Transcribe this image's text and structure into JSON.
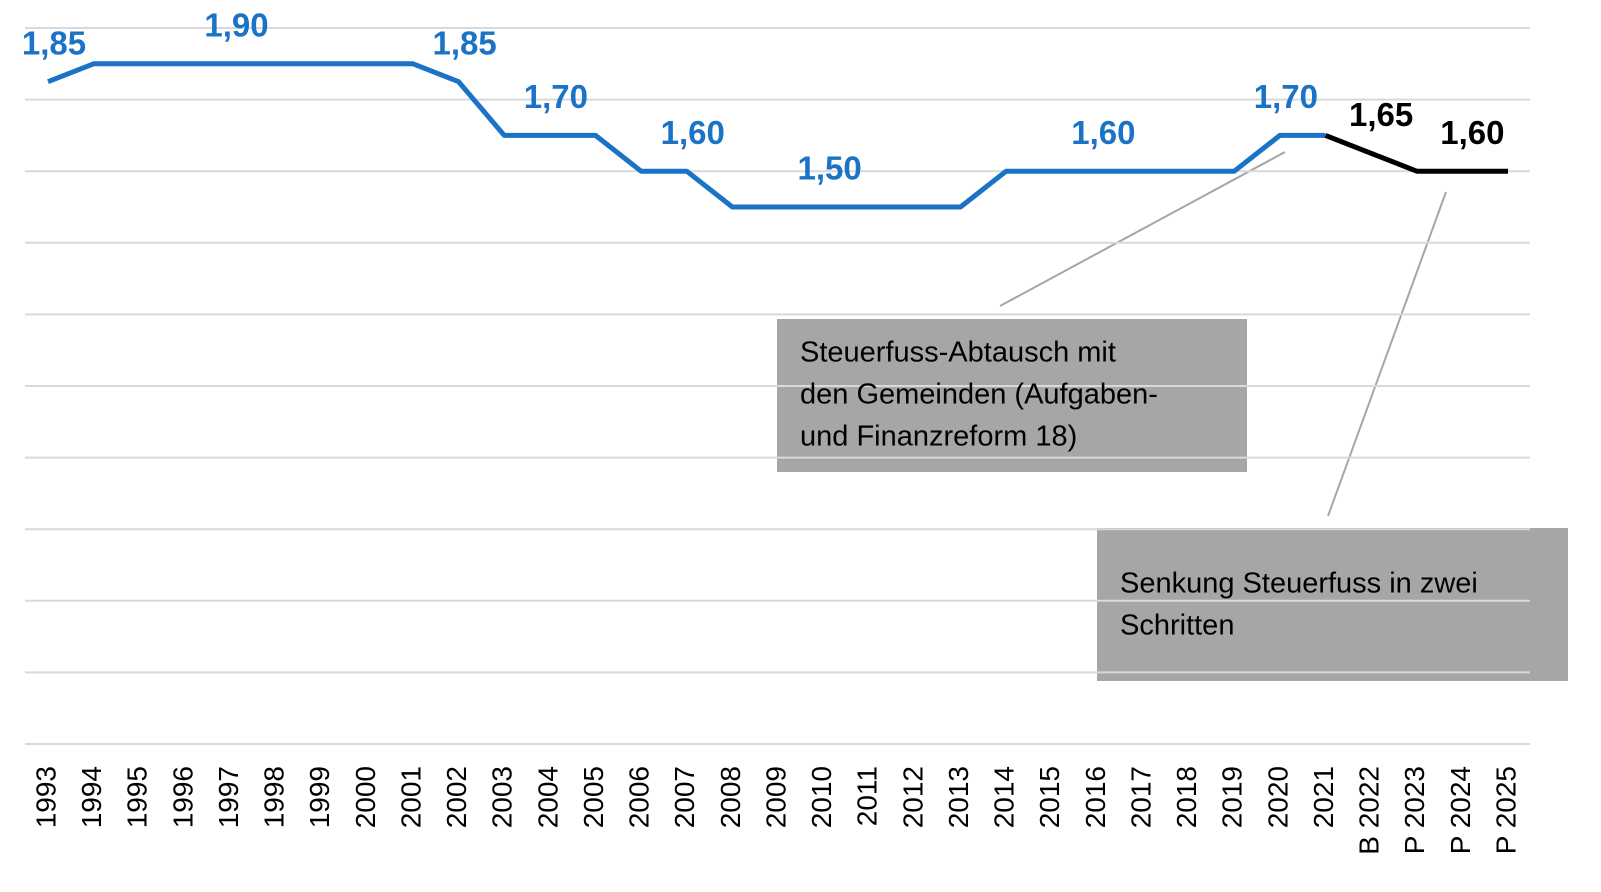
{
  "chart_data": {
    "type": "line",
    "categories": [
      "1993",
      "1994",
      "1995",
      "1996",
      "1997",
      "1998",
      "1999",
      "2000",
      "2001",
      "2002",
      "2003",
      "2004",
      "2005",
      "2006",
      "2007",
      "2008",
      "2009",
      "2010",
      "2011",
      "2012",
      "2013",
      "2014",
      "2015",
      "2016",
      "2017",
      "2018",
      "2019",
      "2020",
      "2021",
      "B 2022",
      "P 2023",
      "P 2024",
      "P 2025"
    ],
    "series": [
      {
        "color": "#1a73c6",
        "values": [
          1.85,
          1.9,
          1.9,
          1.9,
          1.9,
          1.9,
          1.9,
          1.9,
          1.9,
          1.85,
          1.7,
          1.7,
          1.7,
          1.6,
          1.6,
          1.5,
          1.5,
          1.5,
          1.5,
          1.5,
          1.5,
          1.6,
          1.6,
          1.6,
          1.6,
          1.6,
          1.6,
          1.7,
          1.7,
          null,
          null,
          null,
          null
        ],
        "value_labels": [
          "1,85",
          null,
          null,
          null,
          "1,90",
          null,
          null,
          null,
          null,
          "1,85",
          null,
          "1,70",
          null,
          null,
          "1,60",
          null,
          null,
          "1,50",
          null,
          null,
          null,
          null,
          null,
          "1,60",
          null,
          null,
          null,
          "1,70",
          null,
          null,
          null,
          null,
          null
        ]
      },
      {
        "color": "#000000",
        "values": [
          null,
          null,
          null,
          null,
          null,
          null,
          null,
          null,
          null,
          null,
          null,
          null,
          null,
          null,
          null,
          null,
          null,
          null,
          null,
          null,
          null,
          null,
          null,
          null,
          null,
          null,
          null,
          null,
          1.7,
          1.65,
          1.6,
          1.6,
          1.6
        ],
        "value_labels": [
          null,
          null,
          null,
          null,
          null,
          null,
          null,
          null,
          null,
          null,
          null,
          null,
          null,
          null,
          null,
          null,
          null,
          null,
          null,
          null,
          null,
          null,
          null,
          null,
          null,
          null,
          null,
          null,
          null,
          "1,65",
          null,
          "1,60",
          null
        ]
      }
    ],
    "ylim": [
      0,
      2.0
    ],
    "yticks": [
      0,
      0.2,
      0.4,
      0.6,
      0.8,
      1.0,
      1.2,
      1.4,
      1.6,
      1.8,
      2.0
    ],
    "grid": true,
    "annotations": [
      {
        "lines": [
          "Steuerfuss-Abtausch mit",
          "den Gemeinden (Aufgaben-",
          "und Finanzreform 18)"
        ]
      },
      {
        "lines": [
          "Senkung Steuerfuss in zwei",
          "Schritten"
        ]
      }
    ]
  }
}
